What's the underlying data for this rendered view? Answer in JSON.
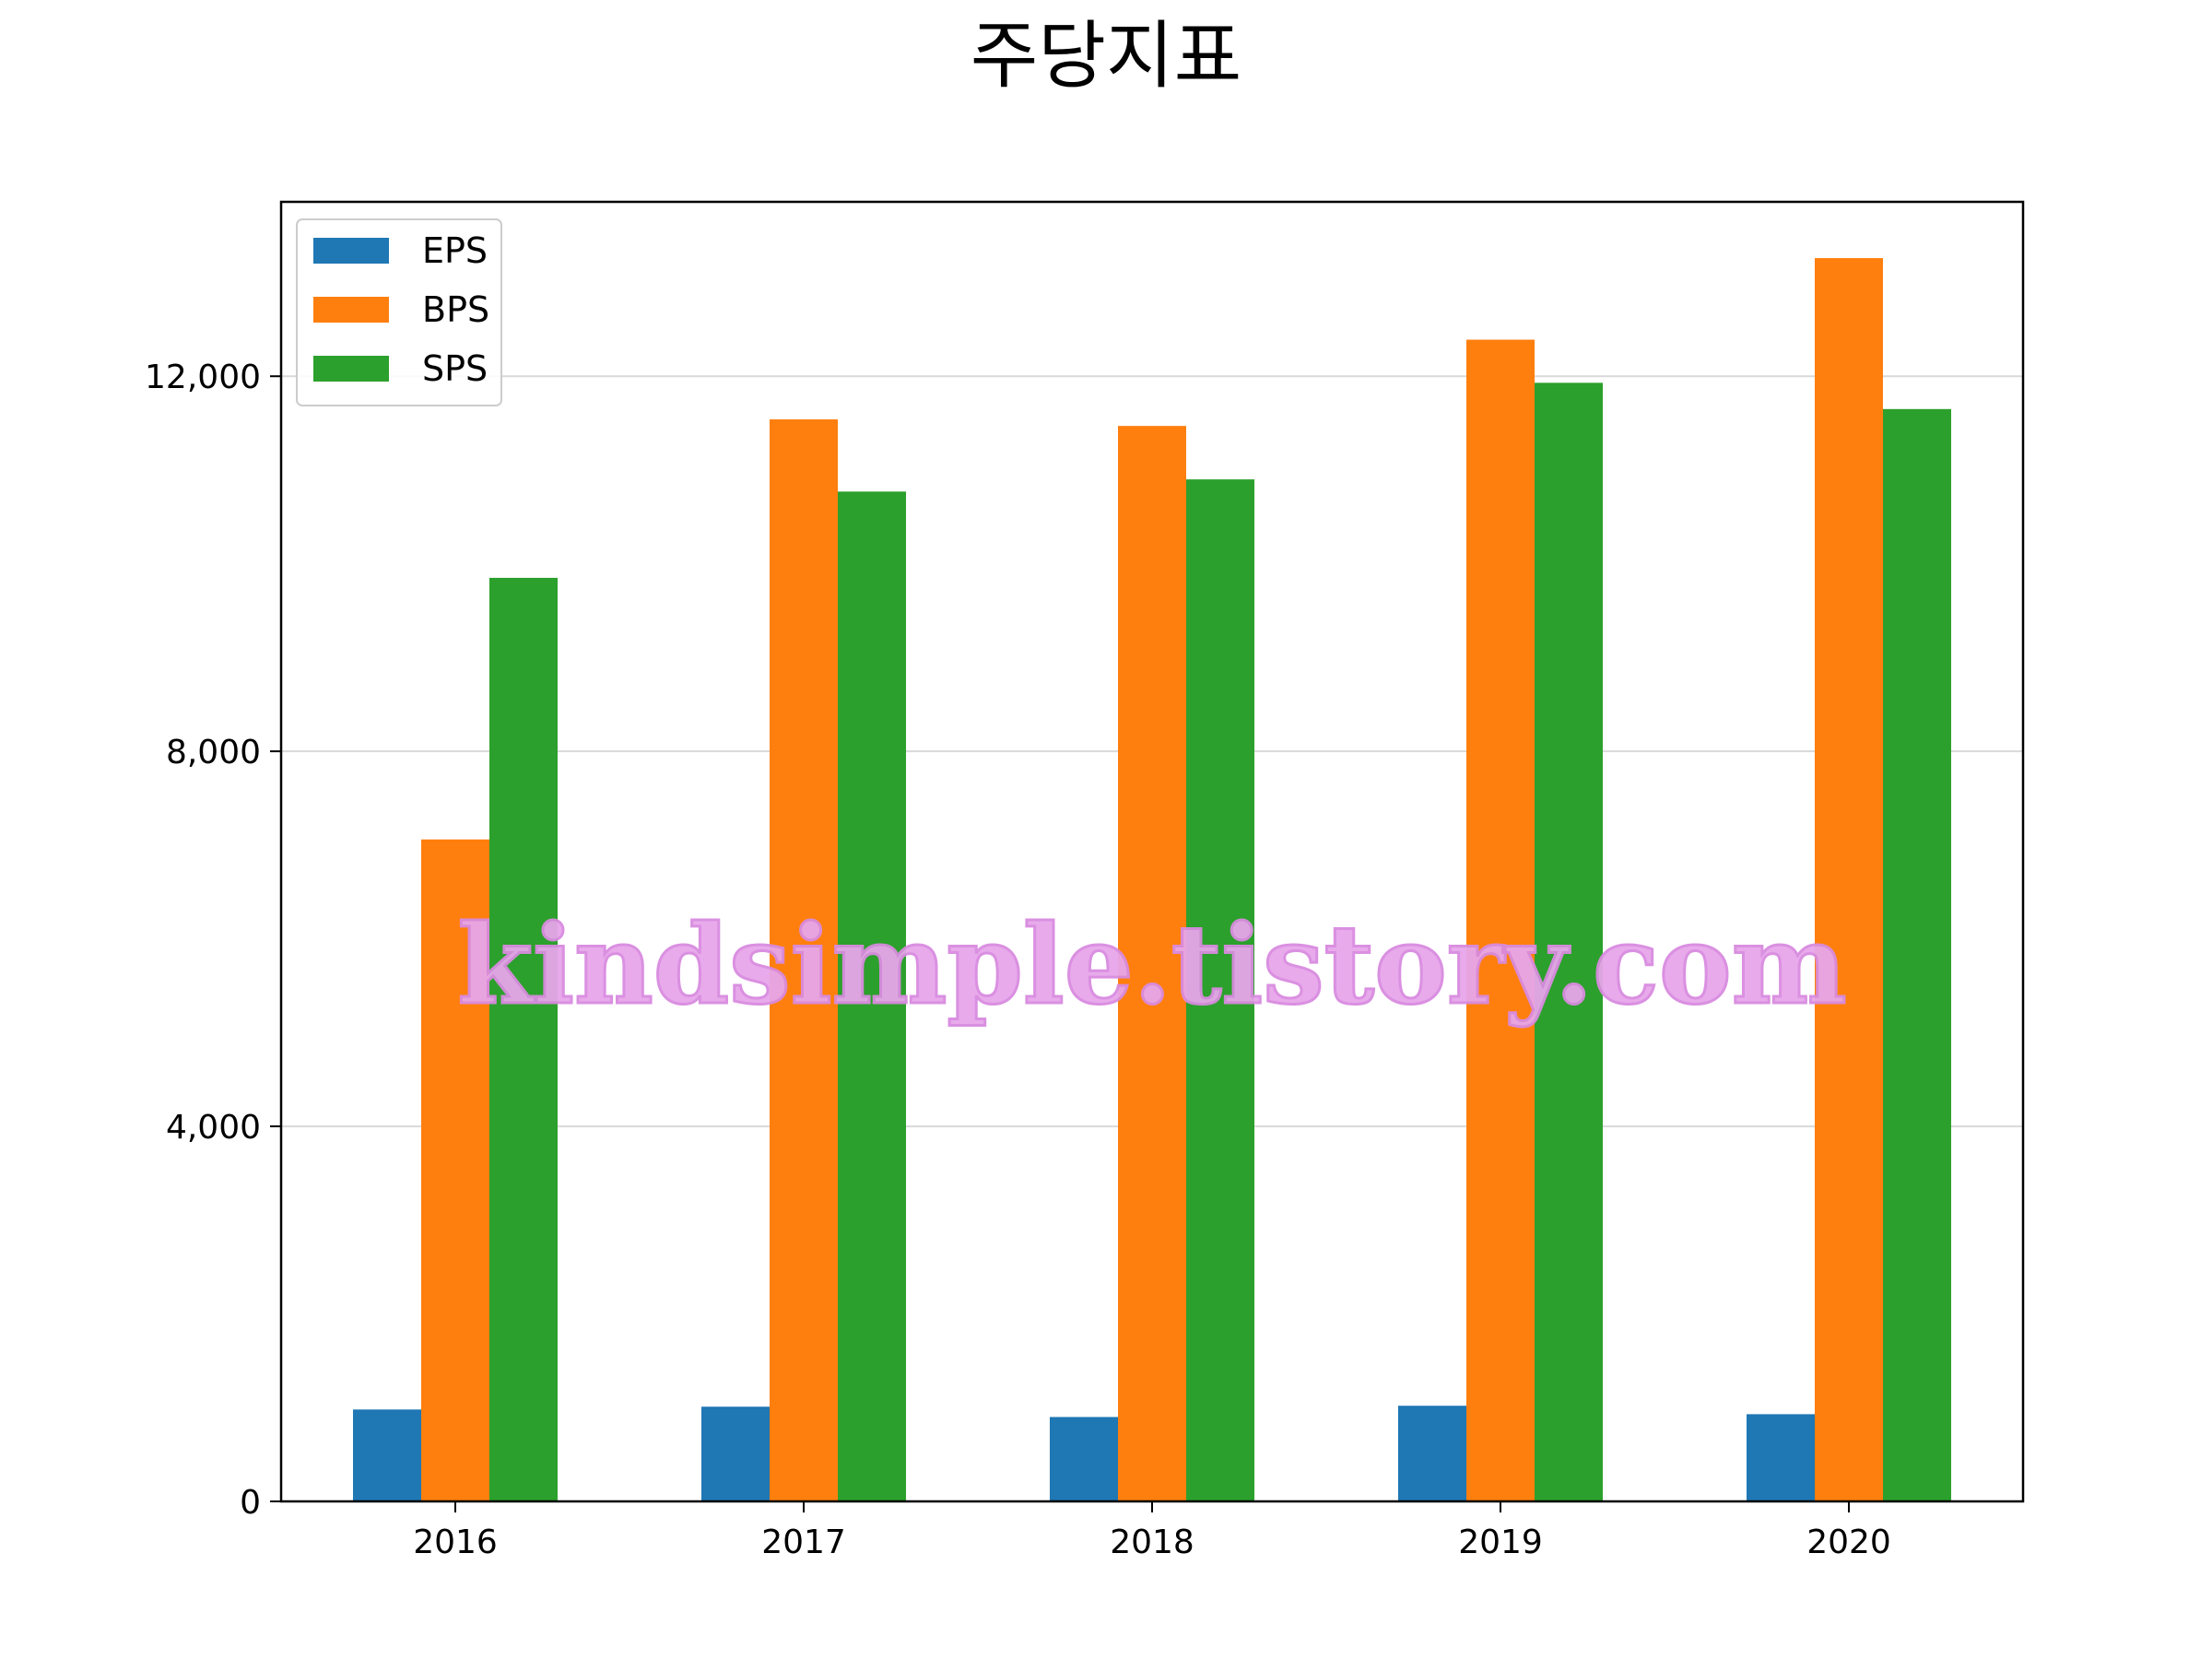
{
  "chart_data": {
    "type": "bar",
    "title": "주당지표",
    "xlabel": "",
    "ylabel": "",
    "categories": [
      "2016",
      "2017",
      "2018",
      "2019",
      "2020"
    ],
    "series": [
      {
        "name": "EPS",
        "color": "#1f77b4",
        "values": [
          980,
          1010,
          900,
          1020,
          930
        ]
      },
      {
        "name": "BPS",
        "color": "#ff7f0e",
        "values": [
          7060,
          11540,
          11470,
          12390,
          13260
        ]
      },
      {
        "name": "SPS",
        "color": "#2ca02c",
        "values": [
          9850,
          10770,
          10900,
          11930,
          11650
        ]
      }
    ],
    "ylim": [
      0,
      13860
    ],
    "yticks": [
      0,
      4000,
      8000,
      12000
    ],
    "ytick_labels": [
      "0",
      "4,000",
      "8,000",
      "12,000"
    ],
    "grid": "y",
    "legend_position": "top-left"
  },
  "watermark": "kindsimple.tistory.com"
}
